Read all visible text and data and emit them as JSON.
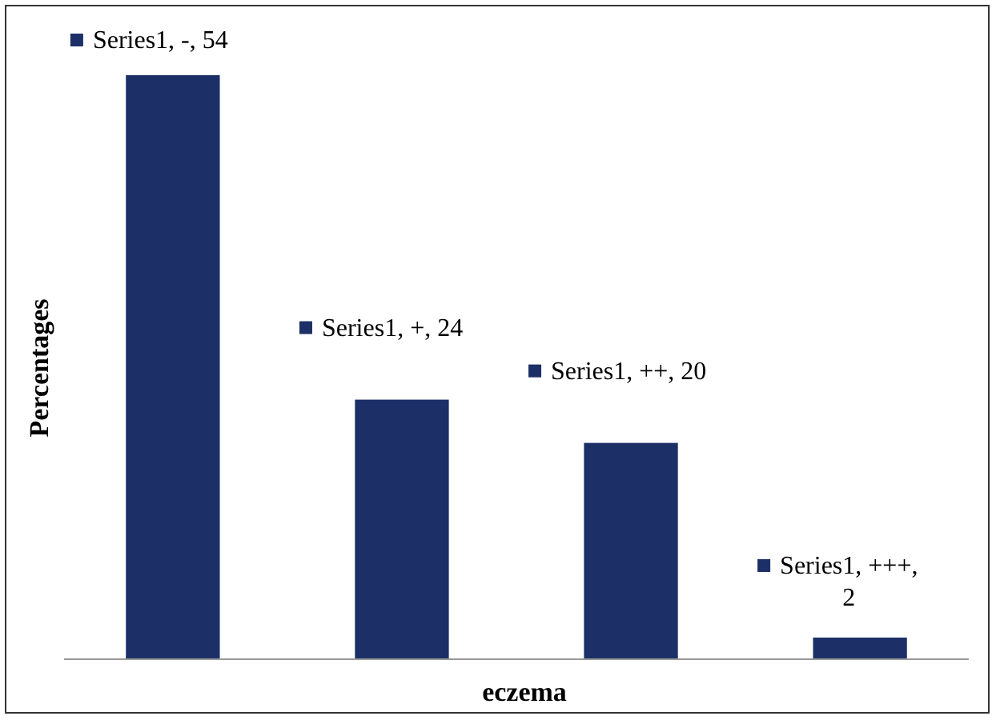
{
  "chart_data": {
    "type": "bar",
    "xlabel": "eczema",
    "ylabel": "Percentages",
    "categories": [
      null,
      null,
      null,
      null
    ],
    "series": [
      {
        "color": "#1c2f66",
        "values": [
          54,
          24,
          20,
          2
        ],
        "value_labels": [
          "Series1, -, 54",
          "Series1, +, 24",
          "Series1, ++, 20",
          "Series1, +++, 2"
        ]
      }
    ]
  }
}
